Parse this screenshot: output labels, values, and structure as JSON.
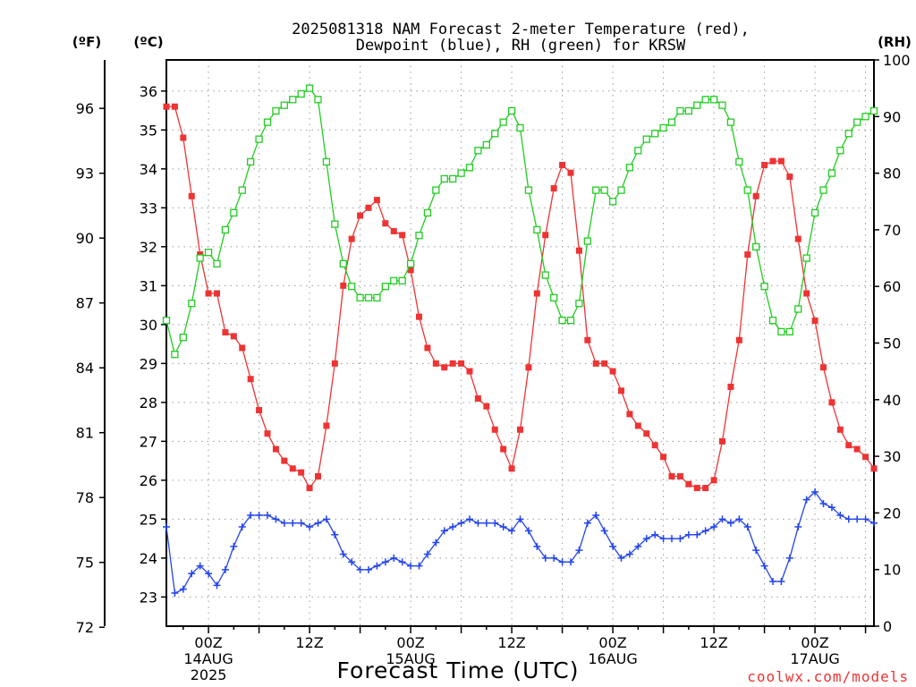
{
  "chart_data": {
    "type": "line",
    "title_line1": "2025081318 NAM Forecast 2-meter Temperature (red),",
    "title_line2": "Dewpoint (blue), RH (green) for KRSW",
    "xlabel": "Forecast Time (UTC)",
    "watermark": "coolwx.com/models",
    "y_unit_f": "(ºF)",
    "y_unit_c": "(ºC)",
    "y_unit_rh": "(RH)",
    "x_range_hours": [
      1,
      85
    ],
    "ylim_c": [
      22.25,
      36.8
    ],
    "ylim_rh": [
      0,
      100
    ],
    "ticks_c": [
      23,
      24,
      25,
      26,
      27,
      28,
      29,
      30,
      31,
      32,
      33,
      34,
      35,
      36
    ],
    "ticks_f": [
      72,
      75,
      78,
      81,
      84,
      87,
      90,
      93,
      96
    ],
    "ticks_rh": [
      0,
      10,
      20,
      30,
      40,
      50,
      60,
      70,
      80,
      90,
      100
    ],
    "x_ticks": [
      {
        "h": 6,
        "hour": "00Z",
        "date": "14AUG",
        "year": "2025"
      },
      {
        "h": 18,
        "hour": "12Z",
        "date": "",
        "year": ""
      },
      {
        "h": 30,
        "hour": "00Z",
        "date": "15AUG",
        "year": ""
      },
      {
        "h": 42,
        "hour": "12Z",
        "date": "",
        "year": ""
      },
      {
        "h": 54,
        "hour": "00Z",
        "date": "16AUG",
        "year": ""
      },
      {
        "h": 66,
        "hour": "12Z",
        "date": "",
        "year": ""
      },
      {
        "h": 78,
        "hour": "00Z",
        "date": "17AUG",
        "year": ""
      }
    ],
    "x_hours": [
      1,
      2,
      3,
      4,
      5,
      6,
      7,
      8,
      9,
      10,
      11,
      12,
      13,
      14,
      15,
      16,
      17,
      18,
      19,
      20,
      21,
      22,
      23,
      24,
      25,
      26,
      27,
      28,
      29,
      30,
      31,
      32,
      33,
      34,
      35,
      36,
      37,
      38,
      39,
      40,
      41,
      42,
      43,
      44,
      45,
      46,
      47,
      48,
      49,
      50,
      51,
      52,
      53,
      54,
      55,
      56,
      57,
      58,
      59,
      60,
      61,
      62,
      63,
      64,
      65,
      66,
      67,
      68,
      69,
      70,
      71,
      72,
      73,
      74,
      75,
      76,
      77,
      78,
      79,
      80,
      81,
      82,
      83,
      84,
      85
    ],
    "series": [
      {
        "name": "2-meter Temperature",
        "unit": "C",
        "color": "#ee3333",
        "marker": "filled-square",
        "values": [
          35.6,
          35.6,
          34.8,
          33.3,
          31.8,
          30.8,
          30.8,
          29.8,
          29.7,
          29.4,
          28.6,
          27.8,
          27.2,
          26.8,
          26.5,
          26.3,
          26.2,
          25.8,
          26.1,
          27.4,
          29.0,
          31.0,
          32.2,
          32.8,
          33.0,
          33.2,
          32.6,
          32.4,
          32.3,
          31.4,
          30.2,
          29.4,
          29.0,
          28.9,
          29.0,
          29.0,
          28.8,
          28.1,
          27.9,
          27.3,
          26.8,
          26.3,
          27.3,
          28.9,
          30.8,
          32.3,
          33.5,
          34.1,
          33.9,
          31.9,
          29.6,
          29.0,
          29.0,
          28.8,
          28.3,
          27.7,
          27.4,
          27.2,
          26.9,
          26.6,
          26.1,
          26.1,
          25.9,
          25.8,
          25.8,
          26.0,
          27.0,
          28.4,
          29.6,
          31.8,
          33.3,
          34.1,
          34.2,
          34.2,
          33.8,
          32.2,
          30.8,
          30.1,
          28.9,
          28.0,
          27.3,
          26.9,
          26.8,
          26.6,
          26.3
        ]
      },
      {
        "name": "Dewpoint",
        "unit": "C",
        "color": "#2244ee",
        "marker": "plus",
        "values": [
          24.8,
          23.1,
          23.2,
          23.6,
          23.8,
          23.6,
          23.3,
          23.7,
          24.3,
          24.8,
          25.1,
          25.1,
          25.1,
          25.0,
          24.9,
          24.9,
          24.9,
          24.8,
          24.9,
          25.0,
          24.6,
          24.1,
          23.9,
          23.7,
          23.7,
          23.8,
          23.9,
          24.0,
          23.9,
          23.8,
          23.8,
          24.1,
          24.4,
          24.7,
          24.8,
          24.9,
          25.0,
          24.9,
          24.9,
          24.9,
          24.8,
          24.7,
          25.0,
          24.7,
          24.3,
          24.0,
          24.0,
          23.9,
          23.9,
          24.2,
          24.9,
          25.1,
          24.7,
          24.3,
          24.0,
          24.1,
          24.3,
          24.5,
          24.6,
          24.5,
          24.5,
          24.5,
          24.6,
          24.6,
          24.7,
          24.8,
          25.0,
          24.9,
          25.0,
          24.8,
          24.2,
          23.8,
          23.4,
          23.4,
          24.0,
          24.8,
          25.5,
          25.7,
          25.4,
          25.3,
          25.1,
          25.0,
          25.0,
          25.0,
          24.9
        ]
      },
      {
        "name": "RH",
        "unit": "%",
        "color": "#22cc22",
        "marker": "open-square",
        "values": [
          54,
          48,
          51,
          57,
          65,
          66,
          64,
          70,
          73,
          77,
          82,
          86,
          89,
          91,
          92,
          93,
          94,
          95,
          93,
          82,
          71,
          64,
          60,
          58,
          58,
          58,
          60,
          61,
          61,
          64,
          69,
          73,
          77,
          79,
          79,
          80,
          81,
          84,
          85,
          87,
          89,
          91,
          88,
          77,
          70,
          62,
          58,
          54,
          54,
          57,
          68,
          77,
          77,
          75,
          77,
          81,
          84,
          86,
          87,
          88,
          89,
          91,
          91,
          92,
          93,
          93,
          92,
          89,
          82,
          77,
          67,
          60,
          54,
          52,
          52,
          56,
          65,
          73,
          77,
          80,
          84,
          87,
          89,
          90,
          91
        ]
      }
    ]
  }
}
